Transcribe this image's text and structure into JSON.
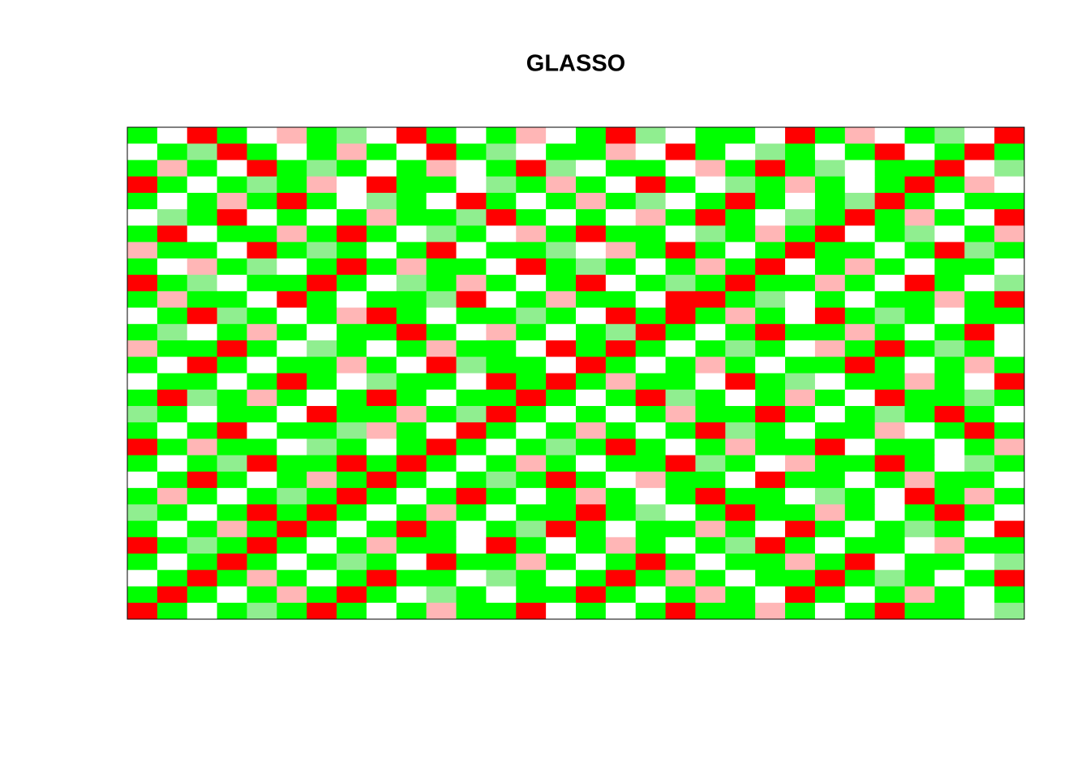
{
  "chart_data": {
    "type": "heatmap",
    "title": "GLASSO",
    "colors": [
      "#00ff00",
      "#90ee90",
      "#ffffff",
      "#ffb6b6",
      "#ff0000"
    ],
    "z": [
      [
        0,
        2,
        4,
        0,
        2,
        3,
        0,
        1,
        2,
        4,
        0,
        2,
        0,
        3,
        2,
        0,
        4,
        1,
        2,
        0,
        0,
        2,
        4,
        0,
        3,
        2,
        0,
        1,
        2,
        4
      ],
      [
        2,
        0,
        1,
        4,
        0,
        2,
        0,
        3,
        0,
        2,
        4,
        0,
        1,
        2,
        0,
        0,
        3,
        2,
        4,
        0,
        2,
        1,
        0,
        2,
        0,
        4,
        2,
        0,
        4,
        0
      ],
      [
        0,
        3,
        0,
        2,
        4,
        0,
        1,
        0,
        2,
        0,
        3,
        2,
        0,
        4,
        1,
        2,
        0,
        0,
        2,
        3,
        0,
        4,
        0,
        1,
        2,
        0,
        0,
        4,
        2,
        1
      ],
      [
        4,
        0,
        2,
        0,
        1,
        0,
        3,
        2,
        4,
        0,
        0,
        2,
        1,
        0,
        3,
        0,
        2,
        4,
        0,
        2,
        1,
        0,
        3,
        0,
        2,
        0,
        4,
        0,
        3,
        2
      ],
      [
        0,
        2,
        0,
        3,
        0,
        4,
        0,
        2,
        1,
        0,
        2,
        4,
        0,
        2,
        0,
        3,
        0,
        1,
        2,
        0,
        4,
        0,
        2,
        0,
        1,
        4,
        0,
        2,
        0,
        0
      ],
      [
        2,
        1,
        0,
        4,
        2,
        0,
        2,
        0,
        3,
        0,
        0,
        1,
        4,
        0,
        2,
        0,
        2,
        3,
        0,
        4,
        0,
        2,
        1,
        0,
        4,
        0,
        3,
        0,
        2,
        4
      ],
      [
        0,
        4,
        2,
        0,
        0,
        3,
        0,
        4,
        0,
        2,
        1,
        0,
        2,
        3,
        0,
        4,
        0,
        0,
        2,
        1,
        0,
        3,
        0,
        4,
        2,
        0,
        1,
        2,
        0,
        3
      ],
      [
        3,
        0,
        0,
        2,
        4,
        0,
        1,
        0,
        2,
        0,
        4,
        2,
        0,
        0,
        1,
        2,
        3,
        0,
        4,
        0,
        2,
        0,
        4,
        0,
        0,
        2,
        0,
        4,
        1,
        0
      ],
      [
        0,
        2,
        3,
        0,
        1,
        2,
        0,
        4,
        0,
        3,
        0,
        0,
        2,
        4,
        0,
        1,
        0,
        2,
        0,
        3,
        0,
        4,
        2,
        0,
        3,
        0,
        2,
        0,
        0,
        2
      ],
      [
        4,
        0,
        1,
        2,
        0,
        0,
        4,
        0,
        2,
        1,
        0,
        3,
        0,
        2,
        0,
        4,
        2,
        0,
        1,
        0,
        4,
        0,
        0,
        3,
        0,
        2,
        4,
        0,
        2,
        1
      ],
      [
        0,
        3,
        0,
        0,
        2,
        4,
        0,
        2,
        0,
        0,
        1,
        4,
        2,
        0,
        3,
        0,
        0,
        2,
        4,
        4,
        0,
        1,
        2,
        0,
        2,
        0,
        0,
        3,
        0,
        4
      ],
      [
        2,
        0,
        4,
        1,
        0,
        2,
        0,
        3,
        4,
        0,
        2,
        0,
        0,
        1,
        0,
        2,
        4,
        0,
        4,
        0,
        3,
        0,
        2,
        4,
        0,
        1,
        0,
        2,
        0,
        0
      ],
      [
        0,
        1,
        2,
        0,
        3,
        0,
        2,
        0,
        0,
        4,
        0,
        2,
        3,
        0,
        2,
        0,
        1,
        4,
        0,
        2,
        0,
        4,
        0,
        0,
        3,
        0,
        2,
        0,
        4,
        2
      ],
      [
        3,
        0,
        0,
        4,
        0,
        2,
        1,
        0,
        2,
        0,
        3,
        0,
        0,
        2,
        4,
        0,
        4,
        0,
        2,
        0,
        1,
        0,
        2,
        3,
        0,
        4,
        0,
        1,
        0,
        2
      ],
      [
        0,
        2,
        4,
        0,
        2,
        0,
        0,
        3,
        0,
        2,
        4,
        1,
        0,
        0,
        2,
        4,
        0,
        2,
        0,
        3,
        0,
        2,
        0,
        0,
        4,
        0,
        2,
        0,
        3,
        0
      ],
      [
        2,
        0,
        0,
        2,
        0,
        4,
        0,
        2,
        1,
        0,
        0,
        2,
        4,
        0,
        4,
        0,
        3,
        0,
        0,
        2,
        4,
        0,
        1,
        2,
        0,
        0,
        3,
        0,
        2,
        4
      ],
      [
        0,
        4,
        1,
        0,
        3,
        0,
        2,
        0,
        4,
        0,
        2,
        0,
        0,
        4,
        0,
        2,
        0,
        4,
        1,
        0,
        2,
        0,
        3,
        0,
        2,
        4,
        0,
        0,
        1,
        0
      ],
      [
        1,
        0,
        2,
        0,
        0,
        2,
        4,
        0,
        0,
        3,
        0,
        1,
        4,
        0,
        2,
        0,
        2,
        0,
        3,
        0,
        0,
        4,
        0,
        2,
        0,
        1,
        0,
        4,
        0,
        2
      ],
      [
        0,
        2,
        0,
        4,
        2,
        0,
        0,
        1,
        3,
        0,
        2,
        4,
        0,
        2,
        0,
        3,
        0,
        2,
        0,
        4,
        1,
        0,
        2,
        0,
        0,
        3,
        2,
        0,
        4,
        0
      ],
      [
        4,
        0,
        3,
        0,
        0,
        2,
        1,
        0,
        2,
        0,
        4,
        0,
        2,
        0,
        1,
        0,
        4,
        0,
        2,
        0,
        3,
        0,
        0,
        4,
        2,
        0,
        0,
        2,
        0,
        3
      ],
      [
        0,
        2,
        0,
        1,
        4,
        0,
        0,
        4,
        0,
        4,
        0,
        2,
        0,
        3,
        0,
        2,
        0,
        0,
        4,
        1,
        0,
        2,
        3,
        0,
        0,
        4,
        0,
        2,
        1,
        0
      ],
      [
        2,
        0,
        4,
        0,
        2,
        0,
        3,
        0,
        4,
        0,
        2,
        0,
        1,
        0,
        4,
        0,
        2,
        3,
        0,
        0,
        2,
        4,
        0,
        0,
        2,
        0,
        3,
        0,
        0,
        2
      ],
      [
        0,
        3,
        0,
        2,
        0,
        1,
        0,
        4,
        0,
        2,
        0,
        4,
        0,
        2,
        0,
        3,
        0,
        2,
        0,
        4,
        0,
        0,
        2,
        1,
        0,
        2,
        4,
        0,
        3,
        0
      ],
      [
        1,
        0,
        2,
        0,
        4,
        0,
        4,
        0,
        2,
        0,
        3,
        0,
        2,
        0,
        0,
        4,
        0,
        1,
        2,
        0,
        4,
        0,
        0,
        3,
        0,
        2,
        0,
        4,
        0,
        2
      ],
      [
        0,
        2,
        0,
        3,
        0,
        4,
        0,
        2,
        0,
        4,
        0,
        2,
        0,
        1,
        4,
        0,
        2,
        0,
        0,
        3,
        0,
        2,
        4,
        0,
        2,
        0,
        1,
        0,
        2,
        4
      ],
      [
        4,
        0,
        1,
        0,
        4,
        0,
        2,
        0,
        3,
        0,
        0,
        2,
        4,
        0,
        2,
        0,
        3,
        0,
        2,
        0,
        1,
        4,
        0,
        2,
        0,
        0,
        2,
        3,
        0,
        0
      ],
      [
        0,
        2,
        0,
        4,
        0,
        2,
        0,
        1,
        0,
        2,
        4,
        0,
        0,
        3,
        0,
        2,
        0,
        4,
        0,
        2,
        0,
        0,
        3,
        0,
        4,
        2,
        0,
        0,
        2,
        1
      ],
      [
        2,
        0,
        4,
        0,
        3,
        0,
        2,
        0,
        4,
        0,
        0,
        2,
        1,
        0,
        2,
        0,
        4,
        0,
        3,
        0,
        2,
        0,
        0,
        4,
        0,
        1,
        0,
        2,
        0,
        4
      ],
      [
        0,
        4,
        0,
        2,
        0,
        3,
        0,
        4,
        0,
        2,
        1,
        0,
        2,
        0,
        0,
        4,
        0,
        2,
        0,
        3,
        0,
        2,
        4,
        0,
        2,
        0,
        3,
        0,
        2,
        0
      ],
      [
        4,
        0,
        2,
        0,
        1,
        0,
        4,
        0,
        2,
        0,
        3,
        0,
        0,
        4,
        2,
        0,
        2,
        0,
        4,
        0,
        0,
        3,
        0,
        2,
        0,
        4,
        0,
        0,
        2,
        1
      ]
    ]
  }
}
